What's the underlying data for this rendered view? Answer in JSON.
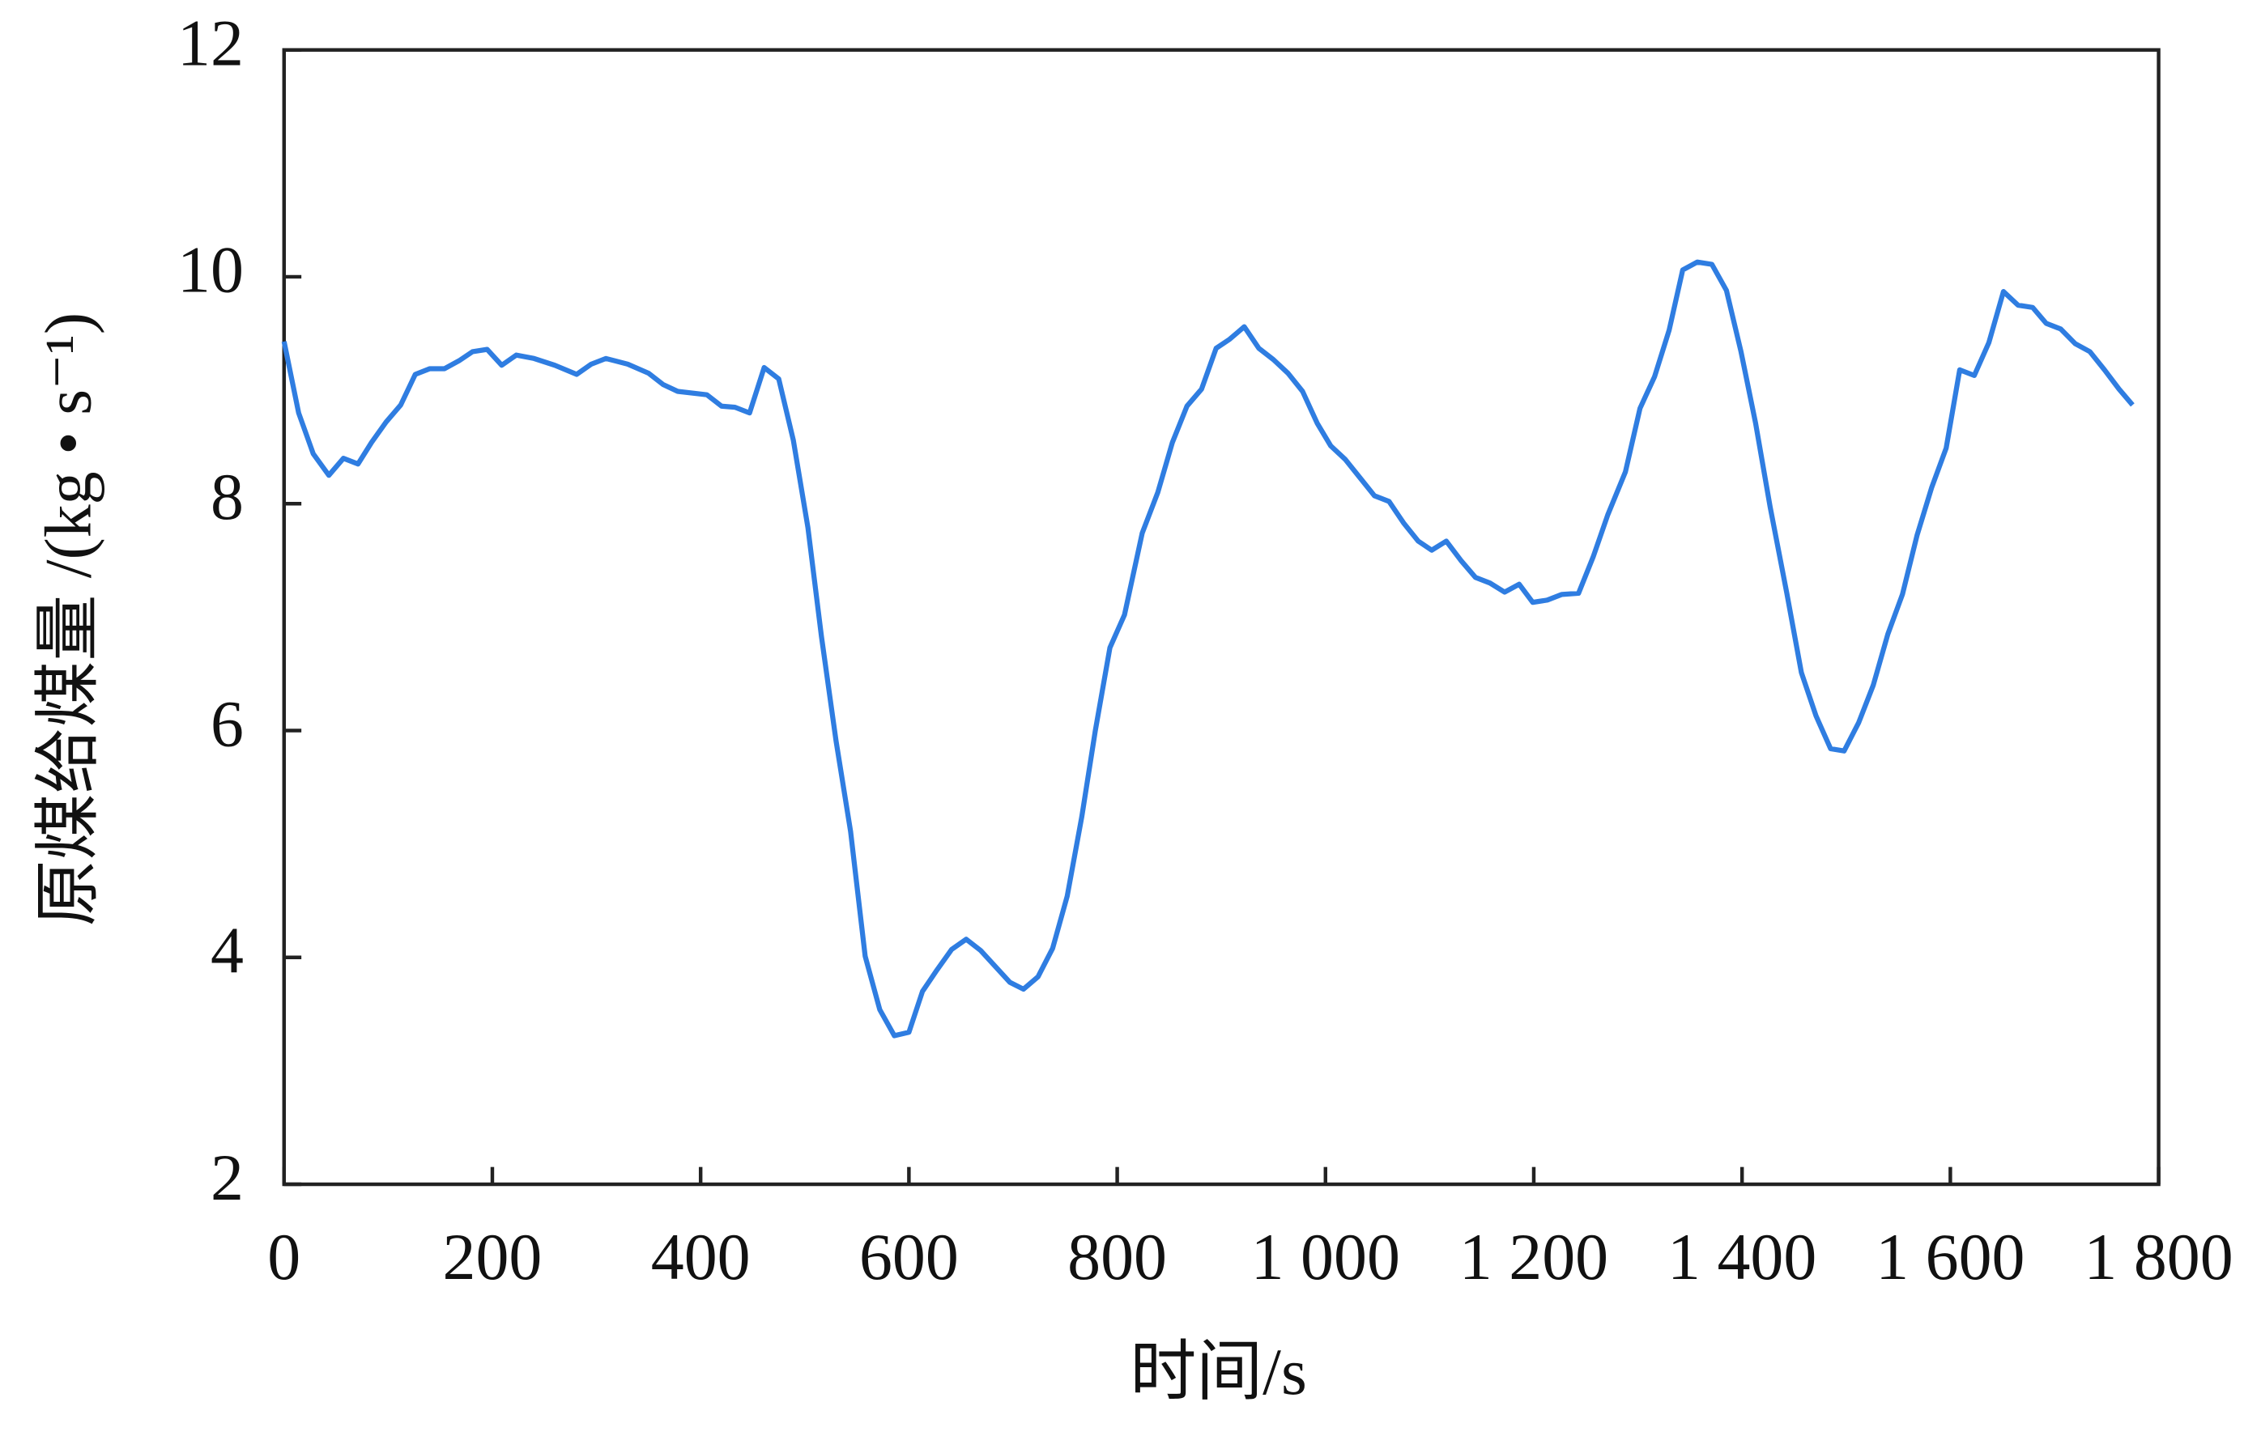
{
  "chart_data": {
    "type": "line",
    "x_label": "时间/s",
    "y_label": "原煤给煤量 /(kg • s⁻¹)",
    "color": "#2f7de1",
    "x": [
      0,
      14,
      28,
      43,
      57,
      71,
      84,
      98,
      112,
      126,
      140,
      154,
      168,
      181,
      195,
      209,
      223,
      240,
      260,
      281,
      295,
      309,
      330,
      350,
      364,
      378,
      406,
      420,
      433,
      447,
      461,
      475,
      489,
      503,
      516,
      530,
      544,
      558,
      572,
      586,
      600,
      613,
      627,
      641,
      655,
      669,
      683,
      697,
      710,
      724,
      738,
      752,
      766,
      779,
      793,
      807,
      824,
      839,
      853,
      867,
      881,
      895,
      908,
      922,
      936,
      950,
      964,
      978,
      992,
      1005,
      1019,
      1033,
      1047,
      1061,
      1075,
      1089,
      1102,
      1116,
      1130,
      1144,
      1158,
      1172,
      1186,
      1199,
      1213,
      1227,
      1243,
      1257,
      1271,
      1288,
      1302,
      1316,
      1330,
      1343,
      1357,
      1371,
      1385,
      1399,
      1413,
      1427,
      1443,
      1457,
      1471,
      1485,
      1498,
      1512,
      1526,
      1540,
      1554,
      1568,
      1582,
      1596,
      1609,
      1623,
      1637,
      1651,
      1665,
      1679,
      1692,
      1706,
      1720,
      1734,
      1748,
      1762,
      1775
    ],
    "values": [
      9.43,
      8.8,
      8.44,
      8.25,
      8.4,
      8.35,
      8.54,
      8.72,
      8.87,
      9.14,
      9.19,
      9.19,
      9.26,
      9.34,
      9.36,
      9.22,
      9.31,
      9.28,
      9.22,
      9.14,
      9.23,
      9.28,
      9.23,
      9.15,
      9.05,
      8.99,
      8.96,
      8.86,
      8.85,
      8.8,
      9.2,
      9.1,
      8.56,
      7.79,
      6.83,
      5.91,
      5.11,
      4.01,
      3.54,
      3.31,
      3.34,
      3.7,
      3.89,
      4.07,
      4.16,
      4.06,
      3.92,
      3.78,
      3.72,
      3.83,
      4.08,
      4.54,
      5.24,
      6.0,
      6.73,
      7.02,
      7.74,
      8.1,
      8.54,
      8.86,
      9.01,
      9.37,
      9.45,
      9.56,
      9.37,
      9.27,
      9.15,
      8.99,
      8.71,
      8.51,
      8.39,
      8.23,
      8.07,
      8.02,
      7.83,
      7.67,
      7.59,
      7.67,
      7.5,
      7.35,
      7.3,
      7.22,
      7.29,
      7.13,
      7.15,
      7.2,
      7.21,
      7.53,
      7.9,
      8.28,
      8.84,
      9.12,
      9.53,
      10.06,
      10.13,
      10.11,
      9.88,
      9.34,
      8.71,
      7.97,
      7.21,
      6.51,
      6.13,
      5.84,
      5.82,
      6.07,
      6.4,
      6.85,
      7.2,
      7.72,
      8.14,
      8.49,
      9.18,
      9.13,
      9.42,
      9.87,
      9.75,
      9.73,
      9.59,
      9.54,
      9.41,
      9.34,
      9.18,
      9.01,
      8.87
    ],
    "xlim": [
      0,
      1800
    ],
    "xticks": [
      0,
      200,
      400,
      600,
      800,
      {
        "value": 1000,
        "label": "1 000"
      },
      {
        "value": 1200,
        "label": "1 200"
      },
      {
        "value": 1400,
        "label": "1 400"
      },
      {
        "value": 1600,
        "label": "1 600"
      },
      {
        "value": 1800,
        "label": "1 800"
      }
    ],
    "ylim": [
      2,
      12
    ],
    "yticks": [
      2,
      4,
      6,
      8,
      10,
      12
    ]
  }
}
